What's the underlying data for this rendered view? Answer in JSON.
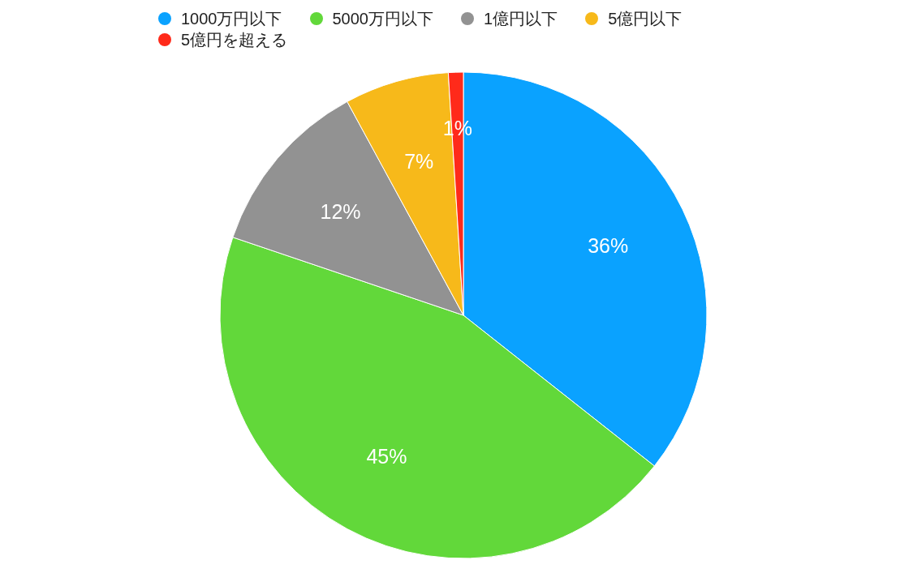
{
  "chart_data": {
    "type": "pie",
    "legend": "top",
    "categories": [
      "1000万円以下",
      "5000万円以下",
      "1億円以下",
      "5億円以下",
      "5億円を超える"
    ],
    "values": [
      36,
      45,
      12,
      7,
      1
    ],
    "colors": [
      "#0aa2ff",
      "#62d83a",
      "#929292",
      "#f7b91a",
      "#ff2a1a"
    ],
    "value_labels": [
      "36%",
      "45%",
      "12%",
      "7%",
      "1%"
    ]
  }
}
